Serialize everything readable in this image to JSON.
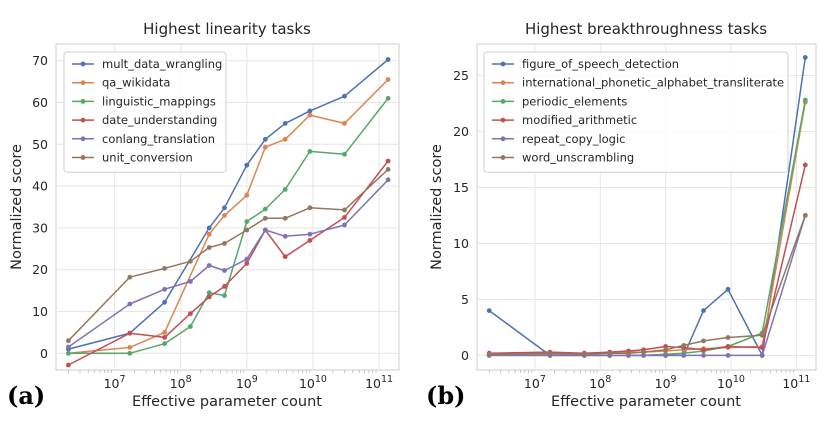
{
  "figure": {
    "panel_labels": [
      "(a)",
      "(b)"
    ]
  },
  "colors": {
    "blue": "#4c72b0",
    "orange": "#dd8452",
    "green": "#55a868",
    "red": "#c44e52",
    "purple": "#8172b3",
    "brown": "#937860"
  },
  "chart_data": [
    {
      "type": "line",
      "title": "Highest linearity tasks",
      "xlabel": "Effective parameter count",
      "ylabel": "Normalized score",
      "x_scale": "log",
      "xlim": [
        1300000.0,
        200000000000.0
      ],
      "ylim": [
        -4,
        74
      ],
      "x_ticks": [
        {
          "value": 10000000.0,
          "mant": "10",
          "exp": "7"
        },
        {
          "value": 100000000.0,
          "mant": "10",
          "exp": "8"
        },
        {
          "value": 1000000000.0,
          "mant": "10",
          "exp": "9"
        },
        {
          "value": 10000000000.0,
          "mant": "10",
          "exp": "10"
        },
        {
          "value": 100000000000.0,
          "mant": "10",
          "exp": "11"
        }
      ],
      "y_ticks": [
        0,
        10,
        20,
        30,
        40,
        50,
        60,
        70
      ],
      "grid": true,
      "legend": "upper-left",
      "series": [
        {
          "name": "mult_data_wrangling",
          "color": "#4c72b0",
          "x": [
            2000000.0,
            17000000.0,
            57000000.0,
            270000000.0,
            460000000.0,
            1000000000.0,
            1900000000.0,
            3800000000.0,
            9000000000.0,
            30000000000.0,
            137000000000.0
          ],
          "y": [
            1.0,
            4.8,
            12.2,
            30.0,
            34.8,
            45.0,
            51.2,
            55.0,
            58.0,
            61.5,
            70.3
          ]
        },
        {
          "name": "qa_wikidata",
          "color": "#dd8452",
          "x": [
            2000000.0,
            17000000.0,
            57000000.0,
            270000000.0,
            460000000.0,
            1000000000.0,
            1900000000.0,
            3800000000.0,
            9000000000.0,
            30000000000.0,
            137000000000.0
          ],
          "y": [
            0.0,
            1.4,
            5.0,
            28.5,
            33.0,
            37.8,
            49.3,
            51.2,
            57.0,
            55.0,
            65.5
          ]
        },
        {
          "name": "linguistic_mappings",
          "color": "#55a868",
          "x": [
            2000000.0,
            17000000.0,
            57000000.0,
            140000000.0,
            270000000.0,
            460000000.0,
            1000000000.0,
            1900000000.0,
            3800000000.0,
            9000000000.0,
            30000000000.0,
            137000000000.0
          ],
          "y": [
            0.0,
            0.0,
            2.3,
            6.4,
            14.5,
            13.8,
            31.5,
            34.5,
            39.2,
            48.3,
            47.6,
            61.0
          ]
        },
        {
          "name": "date_understanding",
          "color": "#c44e52",
          "x": [
            2000000.0,
            17000000.0,
            57000000.0,
            140000000.0,
            270000000.0,
            460000000.0,
            1000000000.0,
            1900000000.0,
            3800000000.0,
            9000000000.0,
            30000000000.0,
            137000000000.0
          ],
          "y": [
            -2.8,
            4.8,
            3.8,
            9.5,
            13.5,
            16.0,
            21.5,
            29.5,
            23.1,
            27.0,
            32.5,
            46.0
          ]
        },
        {
          "name": "conlang_translation",
          "color": "#8172b3",
          "x": [
            2000000.0,
            17000000.0,
            57000000.0,
            140000000.0,
            270000000.0,
            460000000.0,
            1000000000.0,
            1900000000.0,
            3800000000.0,
            9000000000.0,
            30000000000.0,
            137000000000.0
          ],
          "y": [
            1.5,
            11.8,
            15.3,
            17.2,
            21.0,
            19.8,
            22.5,
            29.5,
            28.0,
            28.5,
            30.7,
            41.5
          ]
        },
        {
          "name": "unit_conversion",
          "color": "#937860",
          "x": [
            2000000.0,
            17000000.0,
            57000000.0,
            140000000.0,
            270000000.0,
            460000000.0,
            1000000000.0,
            1900000000.0,
            3800000000.0,
            9000000000.0,
            30000000000.0,
            137000000000.0
          ],
          "y": [
            3.0,
            18.2,
            20.3,
            22.0,
            25.3,
            26.3,
            29.5,
            32.3,
            32.3,
            34.8,
            34.3,
            44.0
          ]
        }
      ]
    },
    {
      "type": "line",
      "title": "Highest breakthroughness tasks",
      "xlabel": "Effective parameter count",
      "ylabel": "Normalized score",
      "x_scale": "log",
      "xlim": [
        1300000.0,
        200000000000.0
      ],
      "ylim": [
        -1.3,
        27.8
      ],
      "x_ticks": [
        {
          "value": 10000000.0,
          "mant": "10",
          "exp": "7"
        },
        {
          "value": 100000000.0,
          "mant": "10",
          "exp": "8"
        },
        {
          "value": 1000000000.0,
          "mant": "10",
          "exp": "9"
        },
        {
          "value": 10000000000.0,
          "mant": "10",
          "exp": "10"
        },
        {
          "value": 100000000000.0,
          "mant": "10",
          "exp": "11"
        }
      ],
      "y_ticks": [
        0,
        5,
        10,
        15,
        20,
        25
      ],
      "grid": true,
      "legend": "upper-left",
      "series": [
        {
          "name": "figure_of_speech_detection",
          "color": "#4c72b0",
          "x": [
            2000000.0,
            17000000.0,
            57000000.0,
            140000000.0,
            270000000.0,
            460000000.0,
            1000000000.0,
            1900000000.0,
            3800000000.0,
            9000000000.0,
            30000000000.0,
            137000000000.0
          ],
          "y": [
            4.0,
            0.0,
            0.0,
            0.0,
            0.0,
            0.0,
            0.0,
            0.0,
            4.0,
            5.9,
            0.0,
            26.6
          ]
        },
        {
          "name": "international_phonetic_alphabet_transliterate",
          "color": "#dd8452",
          "x": [
            2000000.0,
            17000000.0,
            57000000.0,
            140000000.0,
            270000000.0,
            460000000.0,
            1000000000.0,
            1900000000.0,
            3800000000.0,
            9000000000.0,
            30000000000.0,
            137000000000.0
          ],
          "y": [
            0.1,
            0.1,
            0.2,
            0.2,
            0.3,
            0.3,
            0.4,
            0.5,
            0.6,
            0.7,
            0.8,
            22.6
          ]
        },
        {
          "name": "periodic_elements",
          "color": "#55a868",
          "x": [
            2000000.0,
            17000000.0,
            57000000.0,
            140000000.0,
            270000000.0,
            460000000.0,
            1000000000.0,
            1900000000.0,
            3800000000.0,
            9000000000.0,
            30000000000.0,
            137000000000.0
          ],
          "y": [
            0.0,
            0.0,
            0.0,
            0.0,
            0.0,
            0.0,
            0.1,
            0.2,
            0.4,
            0.8,
            2.0,
            22.8
          ]
        },
        {
          "name": "modified_arithmetic",
          "color": "#c44e52",
          "x": [
            2000000.0,
            17000000.0,
            57000000.0,
            140000000.0,
            270000000.0,
            460000000.0,
            1000000000.0,
            1900000000.0,
            3800000000.0,
            9000000000.0,
            30000000000.0,
            137000000000.0
          ],
          "y": [
            0.2,
            0.3,
            0.2,
            0.3,
            0.4,
            0.5,
            0.8,
            0.7,
            0.5,
            0.8,
            0.7,
            17.0
          ]
        },
        {
          "name": "repeat_copy_logic",
          "color": "#8172b3",
          "x": [
            2000000.0,
            17000000.0,
            57000000.0,
            140000000.0,
            270000000.0,
            460000000.0,
            1000000000.0,
            1900000000.0,
            3800000000.0,
            9000000000.0,
            30000000000.0,
            137000000000.0
          ],
          "y": [
            0.0,
            0.0,
            0.0,
            0.0,
            0.0,
            0.0,
            0.0,
            0.0,
            0.0,
            0.0,
            0.0,
            12.5
          ]
        },
        {
          "name": "word_unscrambling",
          "color": "#937860",
          "x": [
            2000000.0,
            17000000.0,
            57000000.0,
            140000000.0,
            270000000.0,
            460000000.0,
            1000000000.0,
            1900000000.0,
            3800000000.0,
            9000000000.0,
            30000000000.0,
            137000000000.0
          ],
          "y": [
            0.1,
            0.2,
            0.1,
            0.2,
            0.2,
            0.3,
            0.5,
            0.9,
            1.3,
            1.6,
            1.8,
            12.5
          ]
        }
      ]
    }
  ]
}
